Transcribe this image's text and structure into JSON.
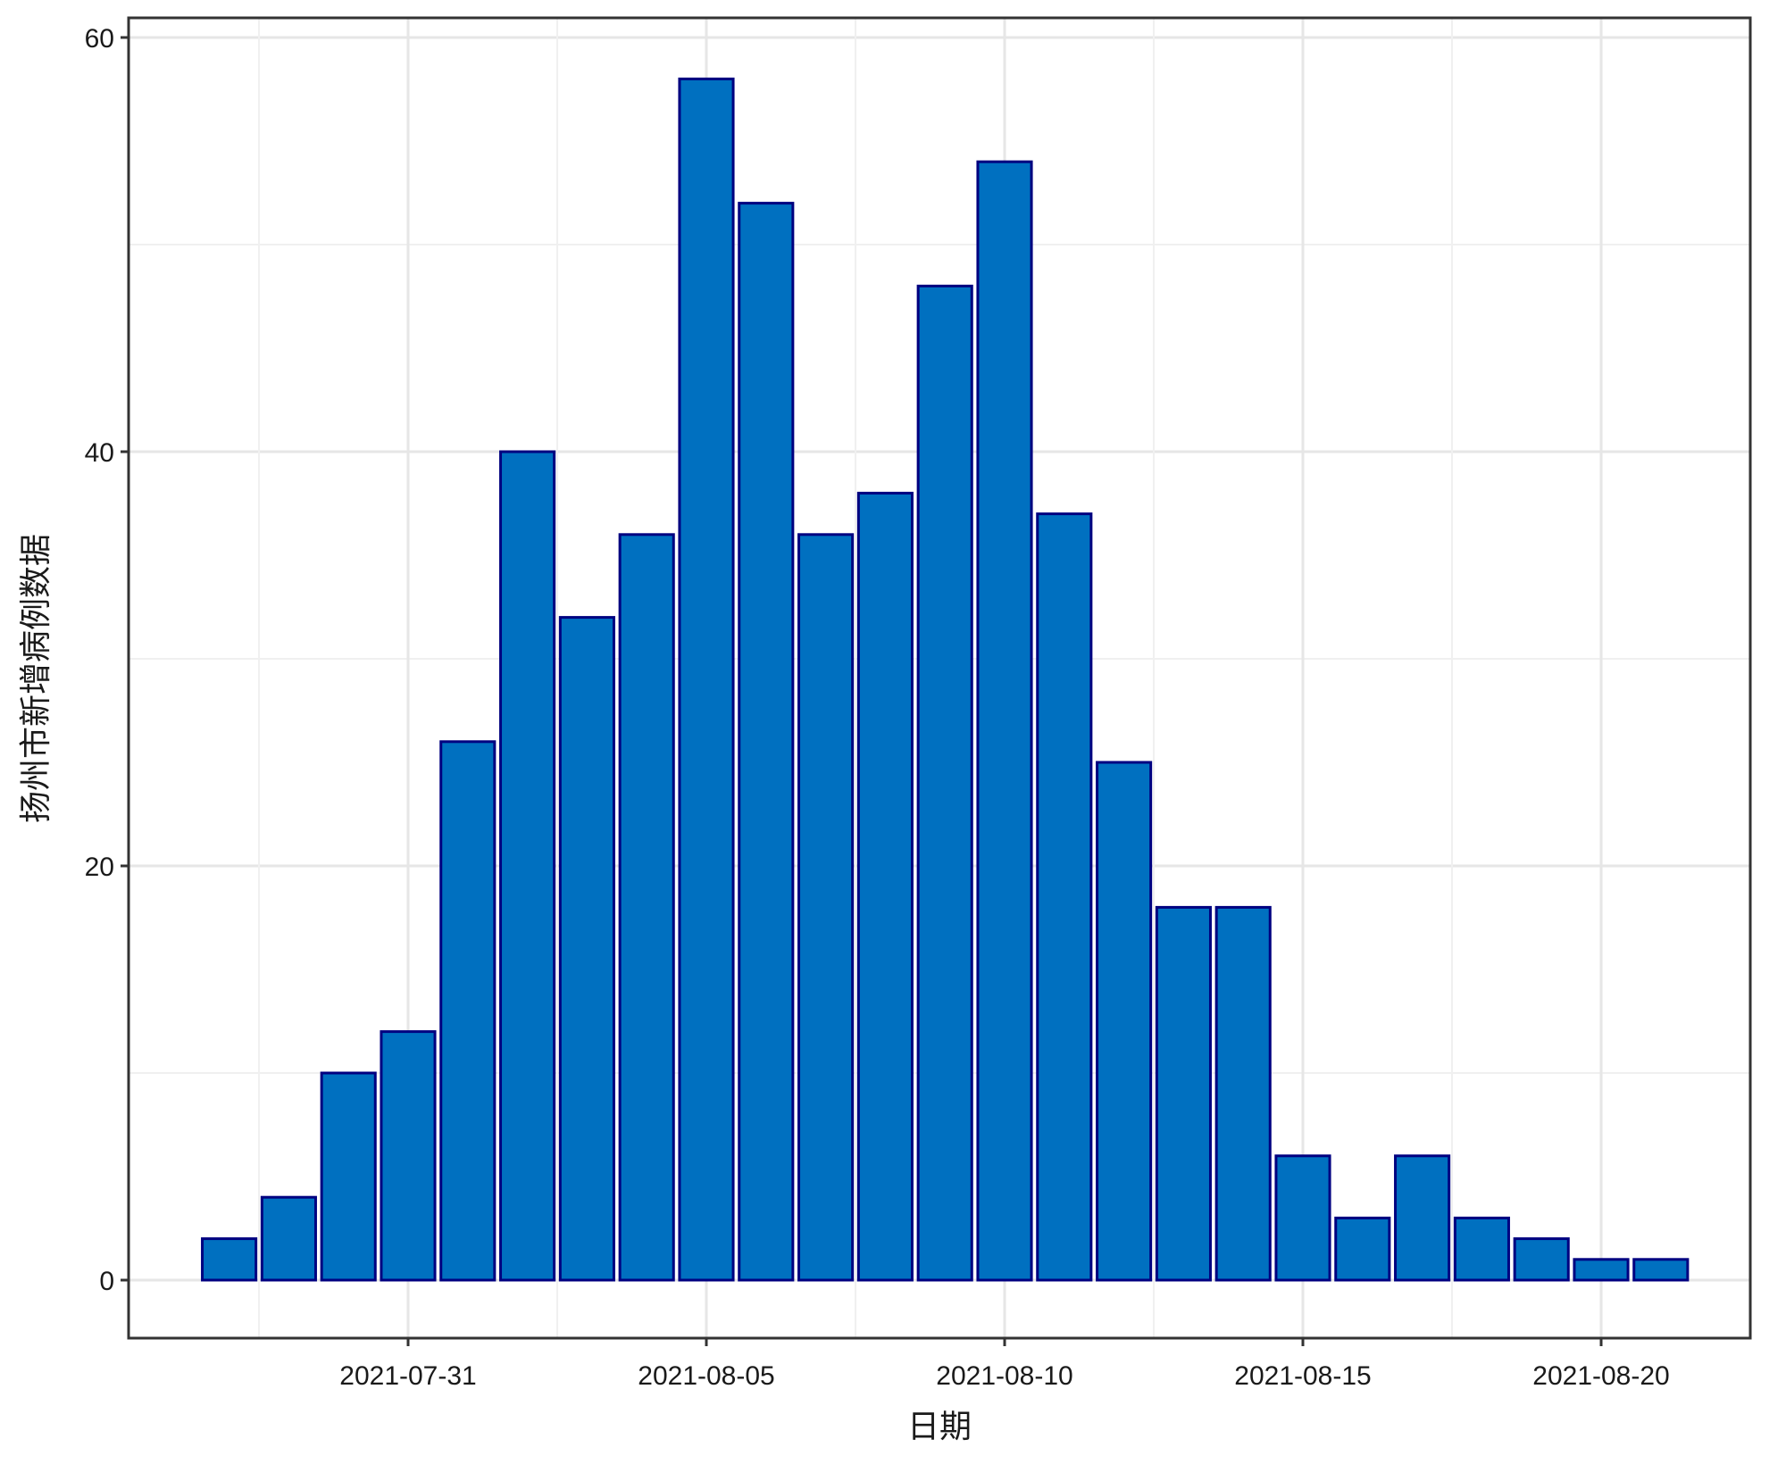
{
  "chart_data": {
    "type": "bar",
    "title": "",
    "xlabel": "日期",
    "ylabel": "扬州市新增病例数据",
    "categories": [
      "2021-07-28",
      "2021-07-29",
      "2021-07-30",
      "2021-07-31",
      "2021-08-01",
      "2021-08-02",
      "2021-08-03",
      "2021-08-04",
      "2021-08-05",
      "2021-08-06",
      "2021-08-07",
      "2021-08-08",
      "2021-08-09",
      "2021-08-10",
      "2021-08-11",
      "2021-08-12",
      "2021-08-13",
      "2021-08-14",
      "2021-08-15",
      "2021-08-16",
      "2021-08-17",
      "2021-08-18",
      "2021-08-19",
      "2021-08-20",
      "2021-08-21"
    ],
    "values": [
      2,
      4,
      10,
      12,
      26,
      40,
      32,
      36,
      58,
      52,
      36,
      38,
      48,
      54,
      37,
      25,
      18,
      18,
      6,
      3,
      6,
      3,
      2,
      1,
      1
    ],
    "x_tick_labels": [
      "2021-07-31",
      "2021-08-05",
      "2021-08-10",
      "2021-08-15",
      "2021-08-20"
    ],
    "y_ticks": [
      0,
      20,
      40,
      60
    ],
    "y_tick_labels": [
      "0",
      "20",
      "40",
      "60"
    ],
    "ylim": [
      -2.8,
      60.9
    ],
    "grid": true,
    "bar_fill": "#0070C0",
    "bar_edge": "#000080"
  }
}
